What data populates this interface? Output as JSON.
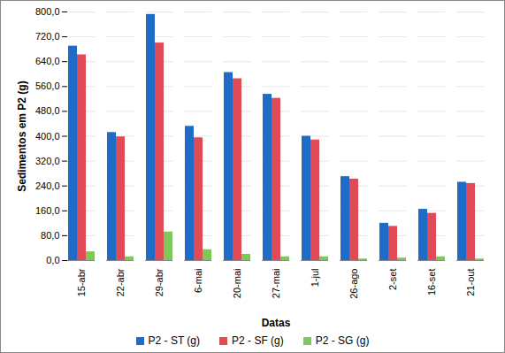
{
  "chart_data": {
    "type": "bar",
    "ylabel": "Sedimentos em P2 (g)",
    "xlabel": "Datas",
    "categories": [
      "15-abr",
      "22-abr",
      "29-abr",
      "6-mai",
      "20-mai",
      "27-mai",
      "1-jul",
      "26-ago",
      "2-set",
      "16-set",
      "21-out"
    ],
    "series": [
      {
        "name": "P2 - ST (g)",
        "color": "#1f6cc8",
        "values": [
          690,
          412,
          792,
          432,
          605,
          535,
          400,
          270,
          120,
          165,
          252
        ]
      },
      {
        "name": "P2 - SF (g)",
        "color": "#e04b55",
        "values": [
          662,
          398,
          700,
          395,
          585,
          522,
          388,
          262,
          110,
          152,
          248
        ]
      },
      {
        "name": "P2 - SG (g)",
        "color": "#7dc858",
        "values": [
          28,
          12,
          92,
          35,
          20,
          12,
          12,
          5,
          8,
          12,
          5
        ]
      }
    ],
    "ylim": [
      0,
      800
    ],
    "yticks": [
      {
        "value": 0,
        "label": "0,0"
      },
      {
        "value": 80,
        "label": "80,0"
      },
      {
        "value": 160,
        "label": "160,0"
      },
      {
        "value": 240,
        "label": "240,0"
      },
      {
        "value": 320,
        "label": "320,0"
      },
      {
        "value": 400,
        "label": "400,0"
      },
      {
        "value": 480,
        "label": "480,0"
      },
      {
        "value": 560,
        "label": "560,0"
      },
      {
        "value": 640,
        "label": "640,0"
      },
      {
        "value": 720,
        "label": "720,0"
      },
      {
        "value": 800,
        "label": "800,0"
      }
    ],
    "grid": true,
    "legend": "bottom"
  }
}
